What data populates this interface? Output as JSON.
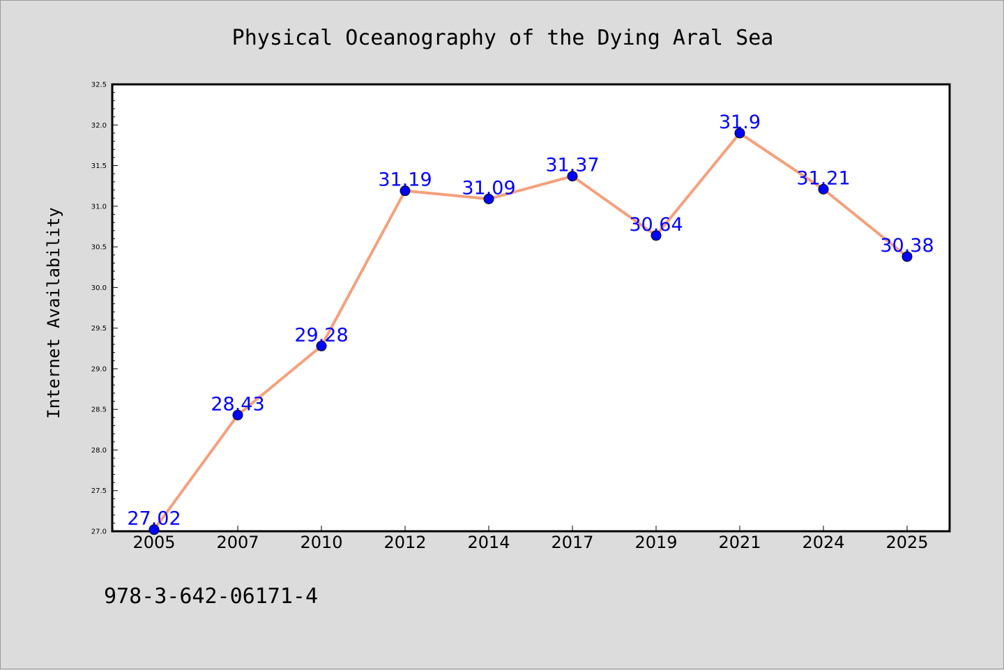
{
  "colors": {
    "background": "#dcdcdc",
    "plot_background": "#ffffff",
    "line": "#f4a07c",
    "marker": "#0000ff",
    "data_label": "#0000ff"
  },
  "footer": {
    "isbn": "978-3-642-06171-4"
  },
  "chart_data": {
    "type": "line",
    "title": "Physical Oceanography of the Dying Aral Sea",
    "xlabel": "",
    "ylabel": "Internet Availability",
    "categories": [
      "2005",
      "2007",
      "2010",
      "2012",
      "2014",
      "2017",
      "2019",
      "2021",
      "2024",
      "2025"
    ],
    "series": [
      {
        "values": [
          27.02,
          28.43,
          29.28,
          31.19,
          31.09,
          31.37,
          30.64,
          31.9,
          31.21,
          30.38
        ]
      }
    ],
    "data_labels": [
      "27.02",
      "28.43",
      "29.28",
      "31.19",
      "31.09",
      "31.37",
      "30.64",
      "31.9",
      "31.21",
      "30.38"
    ],
    "ylim": [
      27.0,
      32.5
    ],
    "yticks": [
      "27.0",
      "27.5",
      "28.0",
      "28.5",
      "29.0",
      "29.5",
      "30.0",
      "30.5",
      "31.0",
      "31.5",
      "32.0",
      "32.5"
    ],
    "grid": false,
    "legend": "none"
  }
}
